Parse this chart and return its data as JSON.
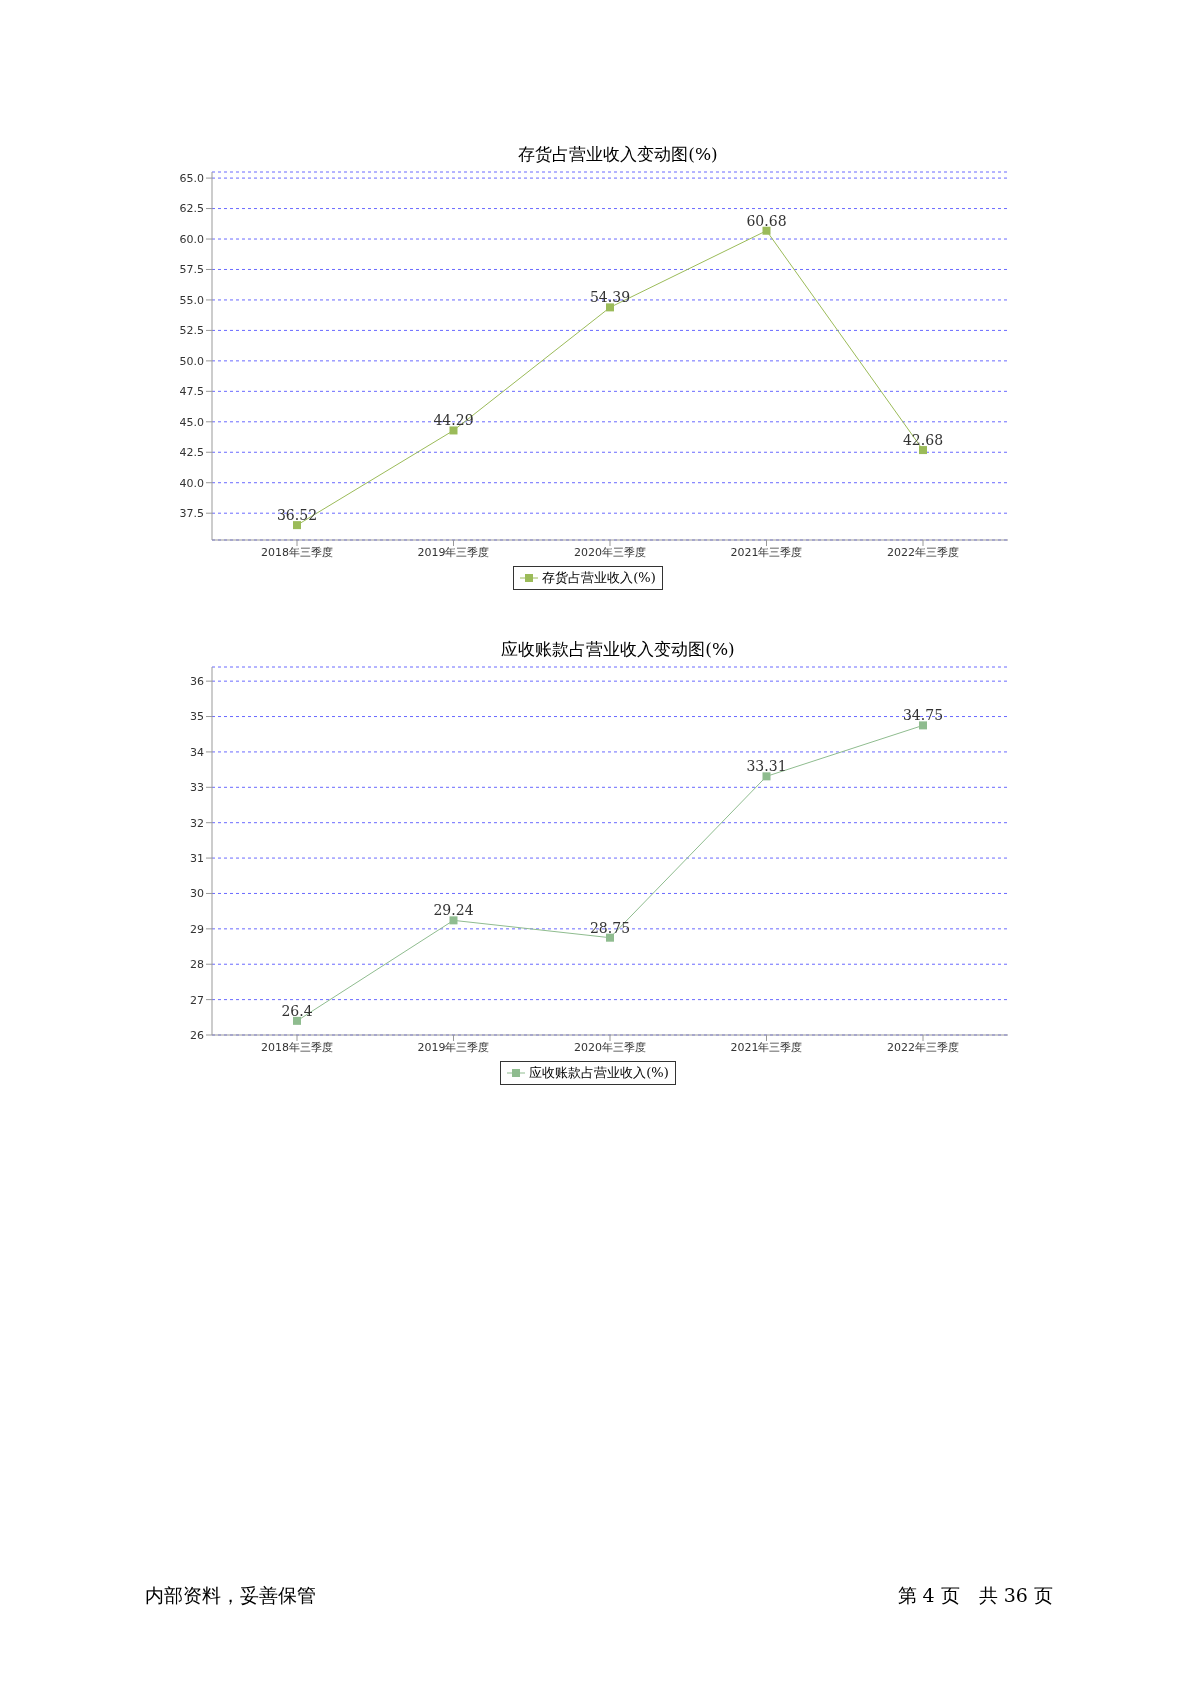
{
  "chart_data": [
    {
      "type": "line",
      "title": "存货占营业收入变动图(%)",
      "categories": [
        "2018年三季度",
        "2019年三季度",
        "2020年三季度",
        "2021年三季度",
        "2022年三季度"
      ],
      "series": [
        {
          "name": "存货占营业收入(%)",
          "color": "#9bbb59",
          "values": [
            36.52,
            44.29,
            54.39,
            60.68,
            42.68
          ]
        }
      ],
      "ylim": [
        35.3,
        65.5
      ],
      "yticks": [
        {
          "value": 37.5,
          "label": "37.5"
        },
        {
          "value": 40,
          "label": "40.0"
        },
        {
          "value": 42.5,
          "label": "42.5"
        },
        {
          "value": 45,
          "label": "45.0"
        },
        {
          "value": 47.5,
          "label": "47.5"
        },
        {
          "value": 50,
          "label": "50.0"
        },
        {
          "value": 52.5,
          "label": "52.5"
        },
        {
          "value": 55,
          "label": "55.0"
        },
        {
          "value": 57.5,
          "label": "57.5"
        },
        {
          "value": 60,
          "label": "60.0"
        },
        {
          "value": 62.5,
          "label": "62.5"
        },
        {
          "value": 65,
          "label": "65.0"
        }
      ],
      "grid": "y",
      "legend": "bottom",
      "marker": "square",
      "line_style": "solid",
      "data_labels": true
    },
    {
      "type": "line",
      "title": "应收账款占营业收入变动图(%)",
      "categories": [
        "2018年三季度",
        "2019年三季度",
        "2020年三季度",
        "2021年三季度",
        "2022年三季度"
      ],
      "series": [
        {
          "name": "应收账款占营业收入(%)",
          "color": "#8fbc8f",
          "values": [
            26.4,
            29.24,
            28.75,
            33.31,
            34.75
          ]
        }
      ],
      "ylim": [
        26,
        36.4
      ],
      "yticks": [
        26,
        27,
        28,
        29,
        30,
        31,
        32,
        33,
        34,
        35,
        36
      ],
      "grid": "y",
      "legend": "bottom",
      "marker": "square",
      "line_style": "solid",
      "data_labels": true,
      "annotations": [
        "内部资料，妥善保管",
        "第 4 页　共 36 页"
      ]
    }
  ]
}
